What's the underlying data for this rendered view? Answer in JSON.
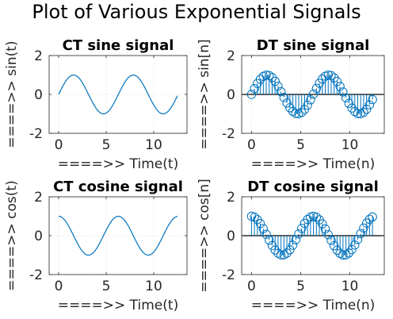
{
  "figure": {
    "suptitle": "Plot of Various Exponential Signals"
  },
  "style": {
    "line_color": "#0072BD",
    "axis_color": "#262626",
    "grid_color": "#d9d9d9",
    "baseline_color": "#000000"
  },
  "chart_data": [
    {
      "type": "line",
      "title": "CT sine signal",
      "xlabel": "====>>  Time(t)",
      "ylabel": "====>>  sin(t)",
      "xlim": [
        -1,
        13.5
      ],
      "ylim": [
        -2,
        2
      ],
      "xticks": [
        0,
        5,
        10
      ],
      "xtick_labels": [
        "0",
        "5",
        "10"
      ],
      "yticks": [
        -2,
        0,
        2
      ],
      "ytick_labels": [
        "-2",
        "0",
        "2"
      ],
      "grid": true,
      "series": [
        {
          "function": "sin",
          "x_start": 0,
          "x_end": 12.5664,
          "x_step": 0.1
        }
      ]
    },
    {
      "type": "stem",
      "title": "DT sine signal",
      "xlabel": "====>>  Time(n)",
      "ylabel": "====>>  sin[n]",
      "xlim": [
        -1,
        13.5
      ],
      "ylim": [
        -2,
        2
      ],
      "xticks": [
        0,
        5,
        10
      ],
      "xtick_labels": [
        "0",
        "5",
        "10"
      ],
      "yticks": [
        -2,
        0,
        2
      ],
      "ytick_labels": [
        "-2",
        "0",
        "2"
      ],
      "grid": true,
      "series": [
        {
          "function": "sin",
          "x_start": 0,
          "x_end": 12.5664,
          "x_step": 0.3
        }
      ]
    },
    {
      "type": "line",
      "title": "CT cosine signal",
      "xlabel": "====>>  Time(t)",
      "ylabel": "====>>  cos(t)",
      "xlim": [
        -1,
        13.5
      ],
      "ylim": [
        -2,
        2
      ],
      "xticks": [
        0,
        5,
        10
      ],
      "xtick_labels": [
        "0",
        "5",
        "10"
      ],
      "yticks": [
        -2,
        0,
        2
      ],
      "ytick_labels": [
        "-2",
        "0",
        "2"
      ],
      "grid": true,
      "series": [
        {
          "function": "cos",
          "x_start": 0,
          "x_end": 12.5664,
          "x_step": 0.1
        }
      ]
    },
    {
      "type": "stem",
      "title": "DT cosine signal",
      "xlabel": "====>>  Time(n)",
      "ylabel": "====>>  cos[n]",
      "xlim": [
        -1,
        13.5
      ],
      "ylim": [
        -2,
        2
      ],
      "xticks": [
        0,
        5,
        10
      ],
      "xtick_labels": [
        "0",
        "5",
        "10"
      ],
      "yticks": [
        -2,
        0,
        2
      ],
      "ytick_labels": [
        "-2",
        "0",
        "2"
      ],
      "grid": true,
      "series": [
        {
          "function": "cos",
          "x_start": 0,
          "x_end": 12.5664,
          "x_step": 0.3
        }
      ]
    }
  ]
}
